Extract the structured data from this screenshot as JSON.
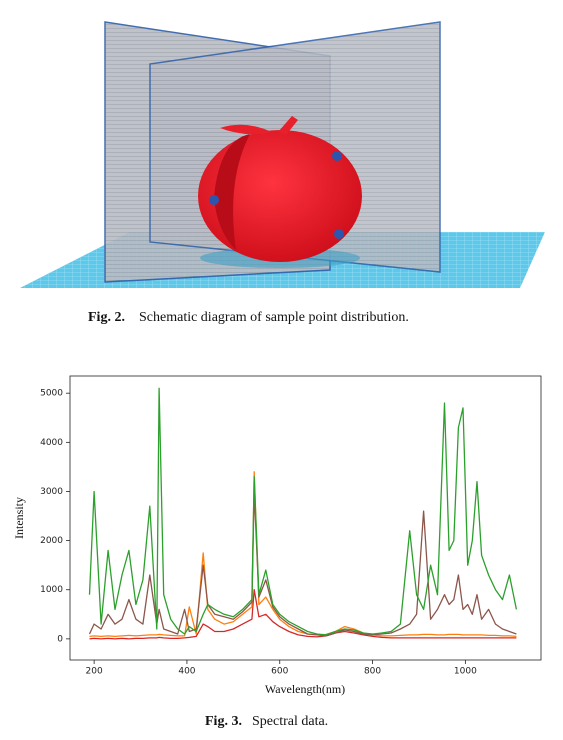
{
  "figure_2": {
    "label": "Fig. 2.",
    "caption": "Schematic diagram of sample point distribution."
  },
  "chart_data": {
    "type": "line",
    "xlabel": "Wavelength(nm)",
    "ylabel": "Intensity",
    "xlim": [
      148,
      1163
    ],
    "ylim": [
      -430,
      5350
    ],
    "xticks": [
      200,
      400,
      600,
      800,
      1000
    ],
    "yticks": [
      0,
      1000,
      2000,
      3000,
      4000,
      5000
    ],
    "x": [
      190,
      200,
      215,
      230,
      245,
      260,
      275,
      290,
      305,
      320,
      335,
      340,
      350,
      365,
      380,
      395,
      405,
      420,
      435,
      445,
      460,
      480,
      500,
      520,
      540,
      545,
      555,
      570,
      585,
      600,
      620,
      640,
      660,
      680,
      700,
      720,
      740,
      760,
      780,
      800,
      820,
      840,
      860,
      880,
      895,
      910,
      925,
      940,
      955,
      965,
      975,
      985,
      995,
      1005,
      1015,
      1025,
      1035,
      1050,
      1065,
      1080,
      1095,
      1110
    ],
    "series": [
      {
        "color": "#d62728",
        "values": [
          0,
          10,
          0,
          10,
          0,
          10,
          0,
          10,
          10,
          20,
          20,
          30,
          20,
          10,
          10,
          20,
          30,
          50,
          300,
          250,
          150,
          150,
          200,
          300,
          400,
          1000,
          450,
          500,
          350,
          250,
          150,
          80,
          50,
          40,
          60,
          120,
          150,
          120,
          80,
          50,
          30,
          20,
          20,
          20,
          20,
          20,
          20,
          20,
          20,
          20,
          20,
          20,
          20,
          20,
          20,
          20,
          20,
          20,
          20,
          20,
          20,
          20
        ]
      },
      {
        "color": "#ff7f0e",
        "values": [
          50,
          60,
          50,
          60,
          50,
          60,
          70,
          60,
          70,
          80,
          80,
          90,
          80,
          70,
          60,
          60,
          650,
          100,
          1750,
          600,
          400,
          300,
          350,
          500,
          650,
          3400,
          700,
          850,
          600,
          400,
          250,
          150,
          100,
          80,
          90,
          150,
          250,
          200,
          120,
          80,
          60,
          60,
          70,
          80,
          80,
          90,
          90,
          80,
          80,
          90,
          90,
          90,
          80,
          80,
          80,
          80,
          80,
          70,
          70,
          60,
          60,
          50
        ]
      },
      {
        "color": "#8c564b",
        "values": [
          100,
          300,
          200,
          500,
          300,
          400,
          800,
          400,
          300,
          1300,
          300,
          600,
          200,
          150,
          100,
          600,
          150,
          200,
          1500,
          700,
          500,
          450,
          400,
          550,
          750,
          3000,
          850,
          1200,
          650,
          450,
          300,
          200,
          100,
          80,
          60,
          120,
          180,
          150,
          100,
          80,
          100,
          120,
          200,
          300,
          500,
          2600,
          400,
          600,
          900,
          700,
          800,
          1300,
          600,
          700,
          500,
          900,
          400,
          600,
          300,
          200,
          150,
          100
        ]
      },
      {
        "color": "#2ca02c",
        "values": [
          900,
          3000,
          300,
          1800,
          600,
          1300,
          1800,
          700,
          1200,
          2700,
          200,
          5100,
          900,
          400,
          200,
          100,
          250,
          150,
          500,
          700,
          600,
          500,
          450,
          600,
          800,
          3300,
          900,
          1400,
          700,
          500,
          350,
          250,
          150,
          100,
          80,
          150,
          200,
          180,
          120,
          100,
          120,
          150,
          300,
          2200,
          900,
          600,
          1500,
          900,
          4800,
          1800,
          2000,
          4300,
          4700,
          1500,
          2000,
          3200,
          1700,
          1300,
          1000,
          800,
          1300,
          600
        ]
      }
    ]
  },
  "figure_3": {
    "label": "Fig. 3.",
    "caption": "Spectral data."
  }
}
